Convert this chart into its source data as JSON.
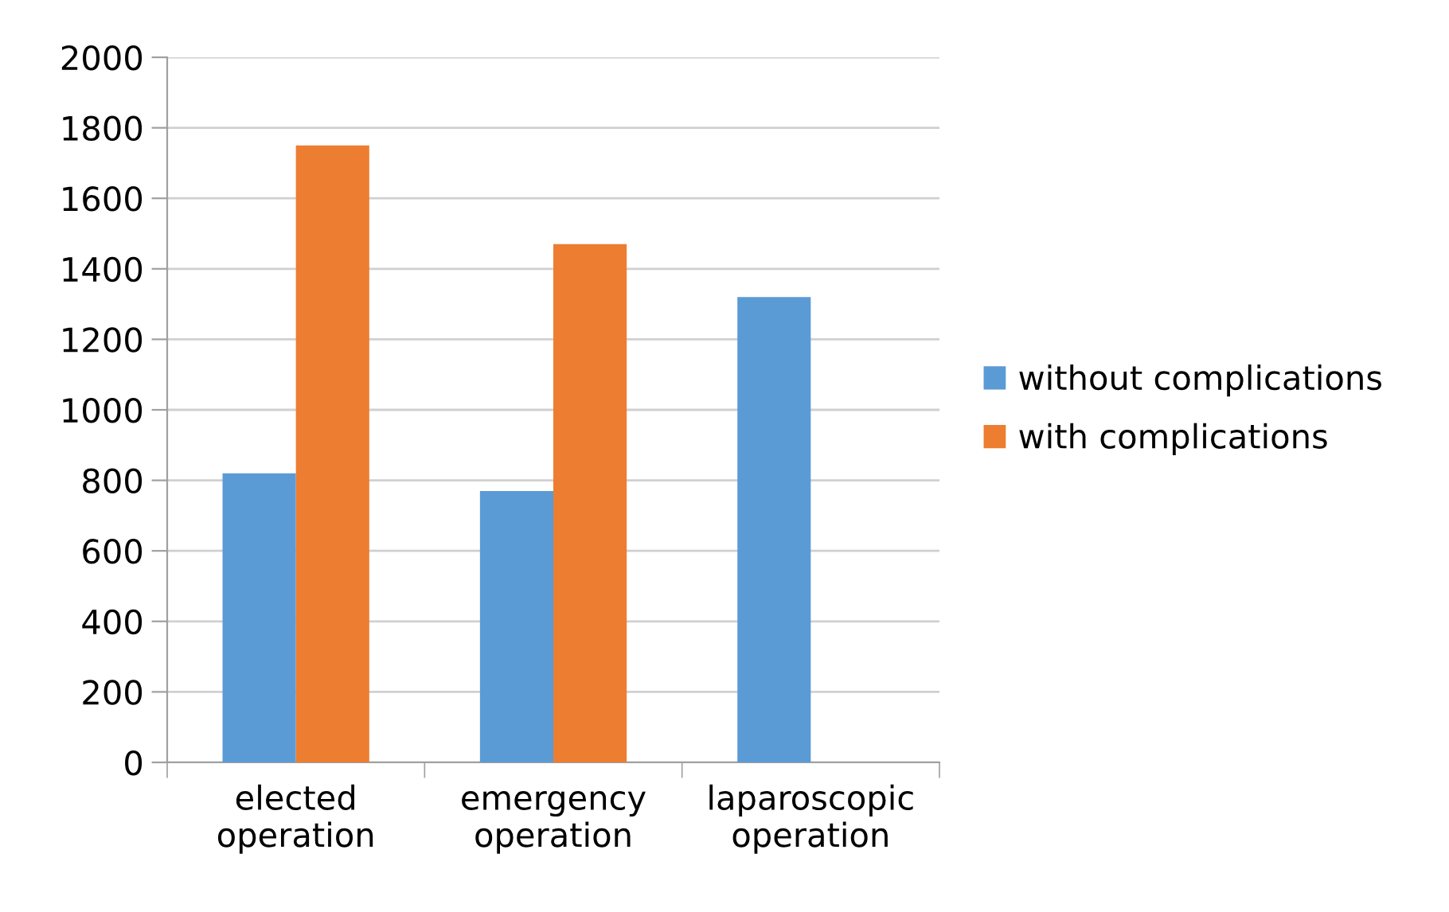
{
  "chart_data": {
    "type": "bar",
    "categories": [
      "elected\noperation",
      "emergency\noperation",
      "laparoscopic\noperation"
    ],
    "series": [
      {
        "name": "without complications",
        "color": "#5b9bd5",
        "values": [
          820,
          770,
          1320
        ]
      },
      {
        "name": "with complications",
        "color": "#ed7d31",
        "values": [
          1750,
          1470,
          null
        ]
      }
    ],
    "ylim": [
      0,
      2000
    ],
    "yticks": [
      0,
      200,
      400,
      600,
      800,
      1000,
      1200,
      1400,
      1600,
      1800,
      2000
    ],
    "grid": "y",
    "legend": "right"
  }
}
